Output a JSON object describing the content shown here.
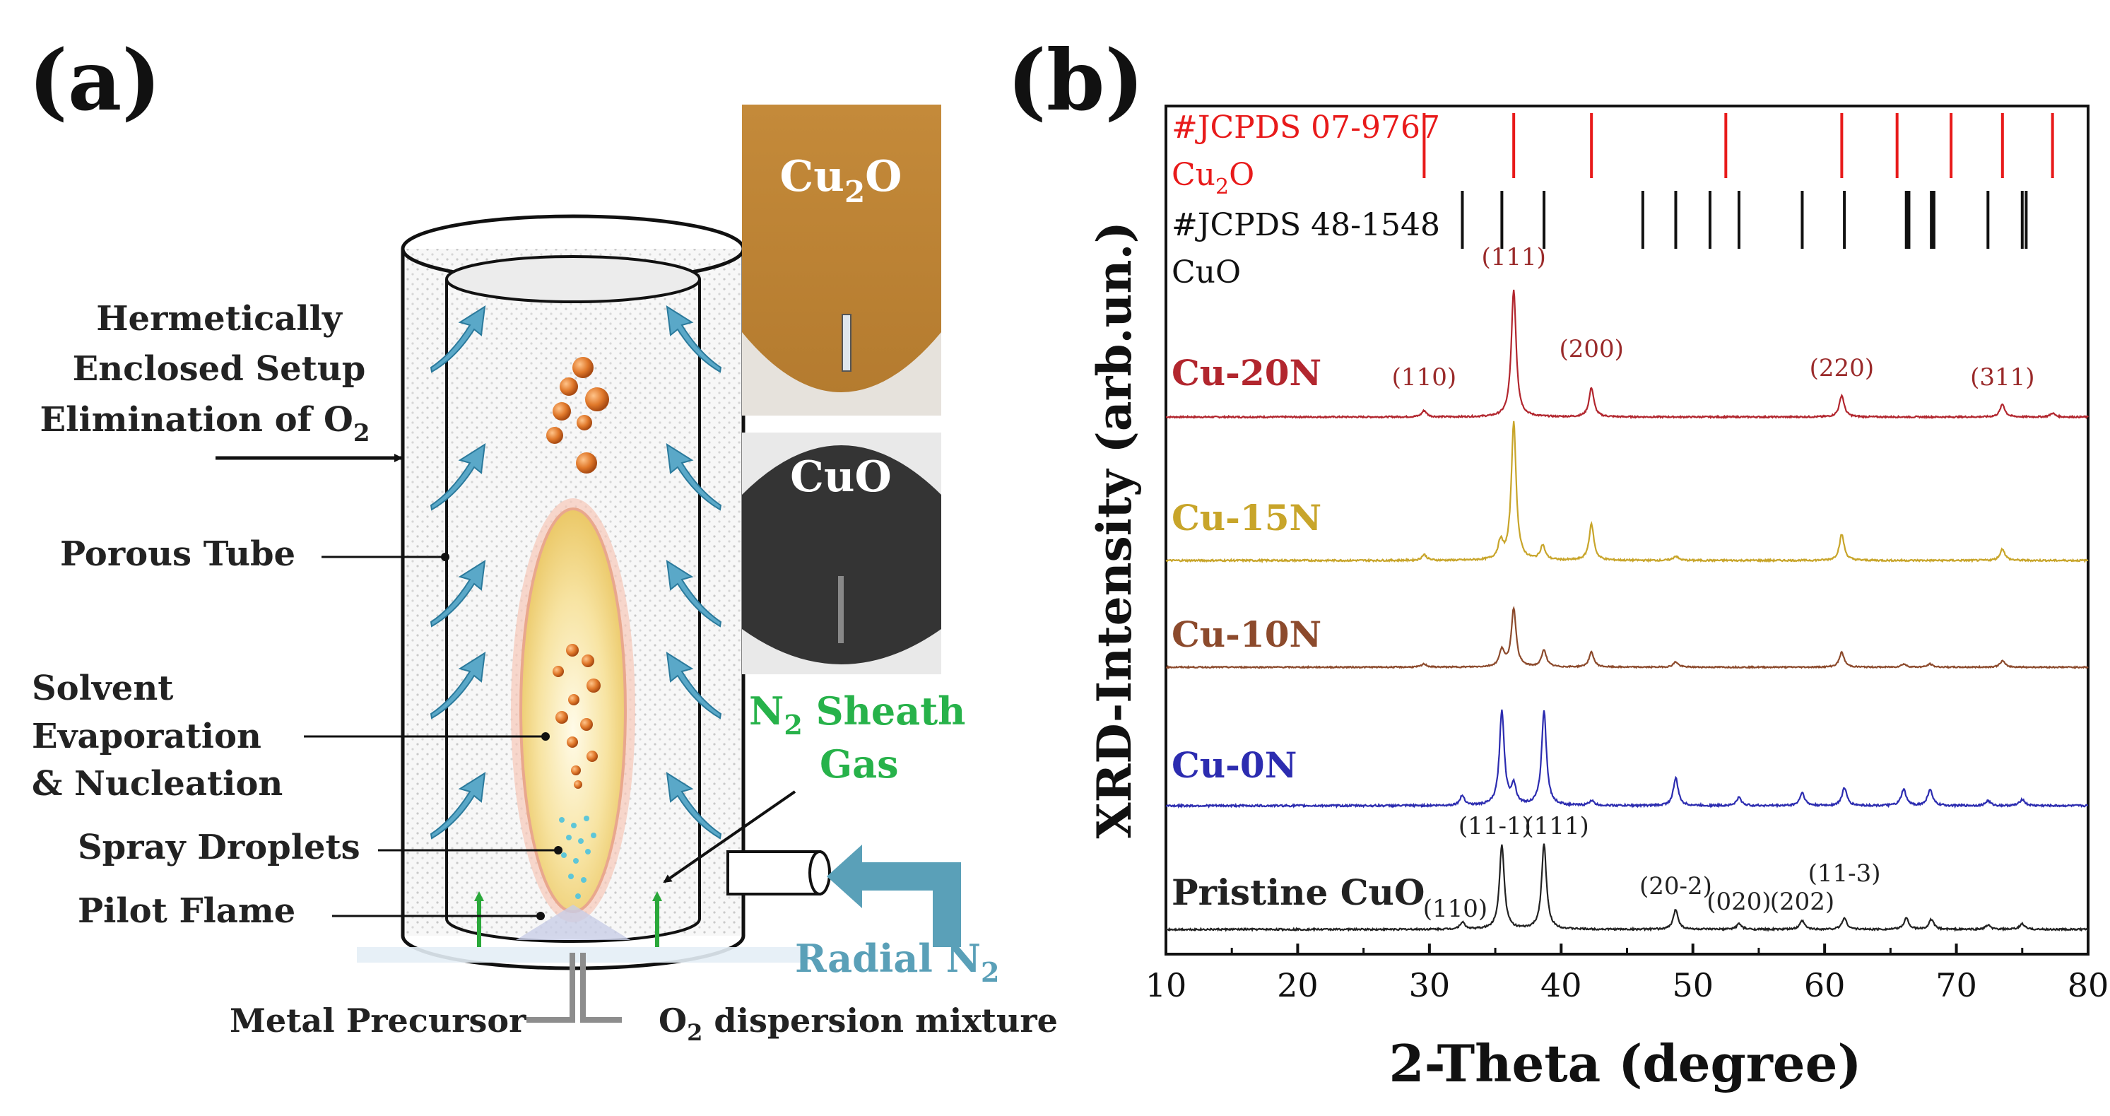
{
  "panel_a": {
    "letter": "(a)",
    "labels": {
      "hermetic_1": "Hermetically",
      "hermetic_2": "Enclosed Setup",
      "hermetic_3": "Elimination of O",
      "hermetic_3_sub": "2",
      "porous_tube": "Porous Tube",
      "solvent_1": "Solvent",
      "solvent_2": "Evaporation",
      "solvent_3": "& Nucleation",
      "spray": "Spray Droplets",
      "pilot": "Pilot Flame",
      "metal": "Metal Precursor",
      "o2_prefix": "O",
      "o2_sub": "2",
      "o2_suffix": " dispersion mixture",
      "sheath_1a": "N",
      "sheath_1sub": "2",
      "sheath_1b": " Sheath",
      "sheath_2": "Gas",
      "radial_a": "Radial N",
      "radial_sub": "2"
    },
    "photos": {
      "top_a": "Cu",
      "top_sub": "2",
      "top_b": "O",
      "bottom": "CuO"
    }
  },
  "panel_b": {
    "letter": "(b)",
    "colors": {
      "cu2o_ref": "#e81a1a",
      "cuo_ref": "#111111",
      "cu20n": "#b2262e",
      "cu15n": "#c8a52a",
      "cu10n": "#8c4a2c",
      "cu0n": "#2c2cb0",
      "pristine": "#222222",
      "peak_label_red": "#9a2a2a"
    },
    "ref_labels": {
      "cu2o_1": "#JCPDS 07-9767",
      "cu2o_2a": "Cu",
      "cu2o_2sub": "2",
      "cu2o_2b": "O",
      "cuo_1": "#JCPDS 48-1548",
      "cuo_2": "CuO"
    },
    "peak_labels_cu2o": [
      {
        "text": "(110)",
        "x": 29.6
      },
      {
        "text": "(111)",
        "x": 36.4
      },
      {
        "text": "(200)",
        "x": 42.3
      },
      {
        "text": "(220)",
        "x": 61.3
      },
      {
        "text": "(311)",
        "x": 73.5
      }
    ],
    "peak_labels_cuo": [
      {
        "text": "(110)",
        "x": 32.5
      },
      {
        "text": "(11-1)",
        "x": 35.5
      },
      {
        "text": "(111)",
        "x": 38.7
      },
      {
        "text": "(20-2)",
        "x": 48.7
      },
      {
        "text": "(020)",
        "x": 53.5
      },
      {
        "text": "(202)",
        "x": 58.3
      },
      {
        "text": "(11-3)",
        "x": 61.5
      }
    ],
    "chart_data": {
      "type": "line",
      "xlabel": "2-Theta (degree)",
      "ylabel": "XRD-Intensity (arb.un.)",
      "xlim": [
        10,
        80
      ],
      "xticks": [
        10,
        20,
        30,
        40,
        50,
        60,
        70,
        80
      ],
      "reference_patterns": [
        {
          "name": "#JCPDS 07-9767 Cu2O",
          "positions": [
            29.6,
            36.4,
            42.3,
            52.5,
            61.3,
            65.5,
            69.6,
            73.5,
            77.3
          ]
        },
        {
          "name": "#JCPDS 48-1548 CuO",
          "positions": [
            32.5,
            35.5,
            38.7,
            46.2,
            48.7,
            51.3,
            53.5,
            58.3,
            61.5,
            66.2,
            66.4,
            68.1,
            68.3,
            72.4,
            75.0,
            75.3
          ]
        }
      ],
      "series": [
        {
          "name": "Cu-20N",
          "baseline": 0.0,
          "peaks": [
            [
              29.6,
              0.05
            ],
            [
              36.4,
              1.0
            ],
            [
              42.3,
              0.23
            ],
            [
              61.3,
              0.17
            ],
            [
              73.5,
              0.1
            ],
            [
              77.3,
              0.03
            ]
          ]
        },
        {
          "name": "Cu-15N",
          "baseline": 0.0,
          "peaks": [
            [
              29.6,
              0.04
            ],
            [
              35.4,
              0.12
            ],
            [
              36.4,
              0.95
            ],
            [
              38.6,
              0.1
            ],
            [
              42.3,
              0.25
            ],
            [
              48.7,
              0.03
            ],
            [
              61.3,
              0.18
            ],
            [
              73.5,
              0.08
            ]
          ]
        },
        {
          "name": "Cu-10N",
          "baseline": 0.0,
          "peaks": [
            [
              29.6,
              0.03
            ],
            [
              35.5,
              0.16
            ],
            [
              36.4,
              0.55
            ],
            [
              38.7,
              0.16
            ],
            [
              42.3,
              0.14
            ],
            [
              48.7,
              0.05
            ],
            [
              61.3,
              0.14
            ],
            [
              66.0,
              0.03
            ],
            [
              68.0,
              0.03
            ],
            [
              73.5,
              0.06
            ]
          ]
        },
        {
          "name": "Cu-0N",
          "baseline": 0.0,
          "peaks": [
            [
              32.5,
              0.06
            ],
            [
              35.5,
              0.58
            ],
            [
              36.4,
              0.12
            ],
            [
              38.7,
              0.58
            ],
            [
              42.3,
              0.03
            ],
            [
              48.7,
              0.17
            ],
            [
              53.5,
              0.05
            ],
            [
              58.3,
              0.08
            ],
            [
              61.5,
              0.11
            ],
            [
              66.0,
              0.1
            ],
            [
              68.0,
              0.1
            ],
            [
              72.4,
              0.03
            ],
            [
              75.0,
              0.04
            ]
          ]
        },
        {
          "name": "Pristine CuO",
          "baseline": 0.0,
          "peaks": [
            [
              32.5,
              0.05
            ],
            [
              35.5,
              0.6
            ],
            [
              38.7,
              0.6
            ],
            [
              48.7,
              0.14
            ],
            [
              53.5,
              0.04
            ],
            [
              58.3,
              0.06
            ],
            [
              61.5,
              0.08
            ],
            [
              66.2,
              0.08
            ],
            [
              68.1,
              0.07
            ],
            [
              72.4,
              0.03
            ],
            [
              75.0,
              0.04
            ]
          ]
        }
      ]
    }
  }
}
